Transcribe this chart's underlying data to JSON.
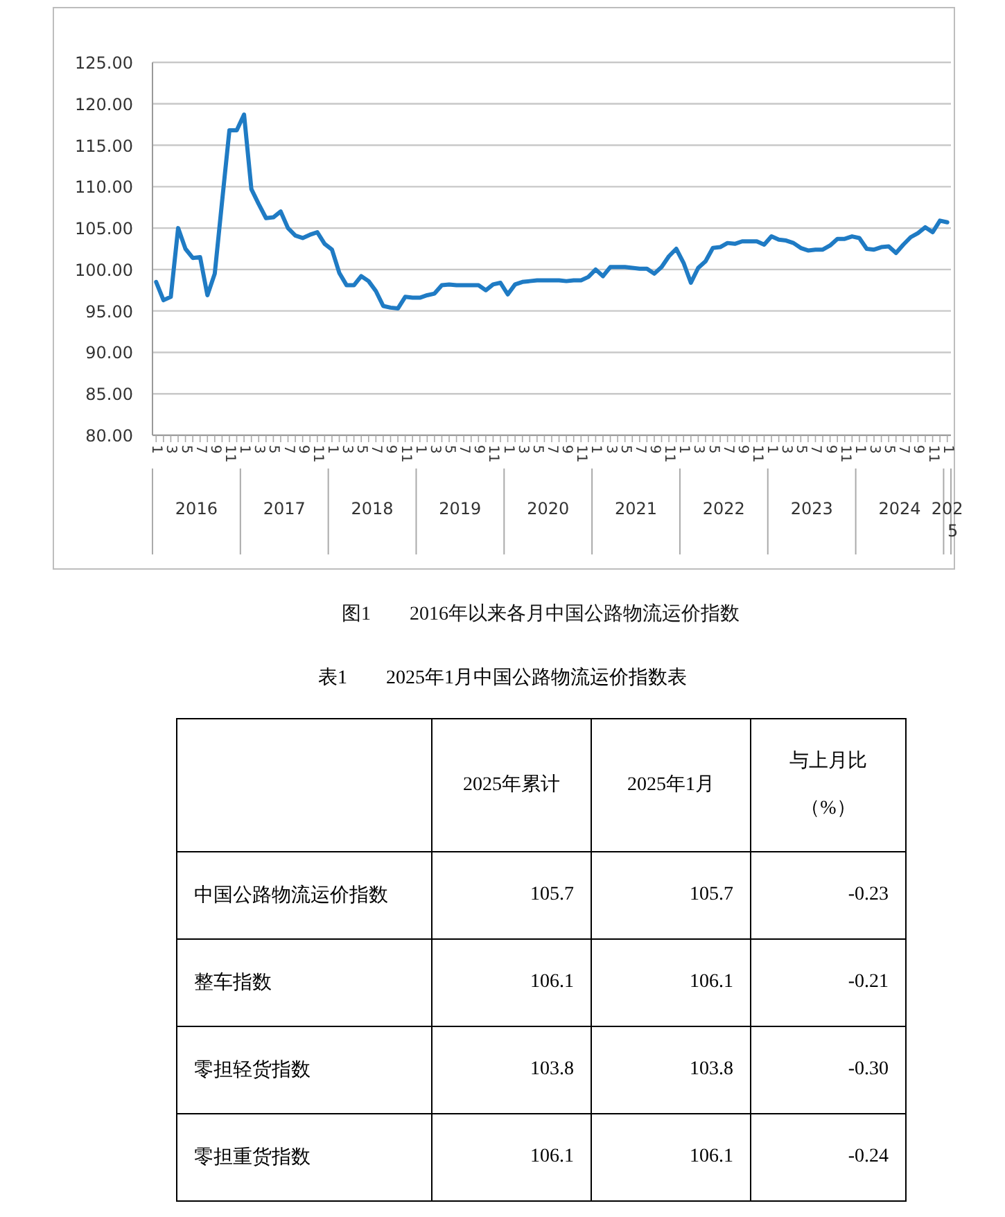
{
  "chart_data": [
    {
      "type": "line",
      "title": "图1　　2016年以来各月中国公路物流运价指数",
      "categories": [
        "1",
        null,
        "3",
        null,
        "5",
        null,
        "7",
        null,
        "9",
        null,
        "11",
        null,
        "1",
        null,
        "3",
        null,
        "5",
        null,
        "7",
        null,
        "9",
        null,
        "11",
        null,
        "1",
        null,
        "3",
        null,
        "5",
        null,
        "7",
        null,
        "9",
        null,
        "11",
        null,
        "1",
        null,
        "3",
        null,
        "5",
        null,
        "7",
        null,
        "9",
        null,
        "11",
        null,
        "1",
        null,
        "3",
        null,
        "5",
        null,
        "7",
        null,
        "9",
        null,
        "11",
        null,
        "1",
        null,
        "3",
        null,
        "5",
        null,
        "7",
        null,
        "9",
        null,
        "11",
        null,
        "1",
        null,
        "3",
        null,
        "5",
        null,
        "7",
        null,
        "9",
        null,
        "11",
        null,
        "1",
        null,
        "3",
        null,
        "5",
        null,
        "7",
        null,
        "9",
        null,
        "11",
        null,
        "1",
        null,
        "3",
        null,
        "5",
        null,
        "7",
        null,
        "9",
        null,
        "11",
        null,
        "1"
      ],
      "series": [
        {
          "color": "#1f7bc4",
          "values": [
            98.5,
            96.3,
            96.7,
            105.0,
            102.5,
            101.4,
            101.5,
            96.9,
            99.5,
            108.2,
            116.8,
            116.8,
            118.7,
            109.7,
            107.9,
            106.2,
            106.3,
            107.0,
            105.0,
            104.1,
            103.8,
            104.2,
            104.5,
            103.1,
            102.4,
            99.6,
            98.1,
            98.1,
            99.2,
            98.6,
            97.4,
            95.6,
            95.4,
            95.3,
            96.7,
            96.6,
            96.6,
            96.9,
            97.1,
            98.1,
            98.2,
            98.1,
            98.1,
            98.1,
            98.1,
            97.5,
            98.2,
            98.4,
            97.0,
            98.2,
            98.5,
            98.6,
            98.7,
            98.7,
            98.7,
            98.7,
            98.6,
            98.7,
            98.7,
            99.1,
            100.0,
            99.2,
            100.3,
            100.3,
            100.3,
            100.2,
            100.1,
            100.1,
            99.5,
            100.3,
            101.6,
            102.5,
            100.8,
            98.4,
            100.2,
            101.0,
            102.6,
            102.7,
            103.2,
            103.1,
            103.4,
            103.4,
            103.4,
            103.0,
            104.0,
            103.6,
            103.5,
            103.2,
            102.6,
            102.3,
            102.4,
            102.4,
            102.9,
            103.7,
            103.7,
            104.0,
            103.8,
            102.5,
            102.4,
            102.7,
            102.8,
            102.0,
            103.0,
            103.9,
            104.4,
            105.1,
            104.5,
            105.9,
            105.7
          ]
        }
      ],
      "ylim": [
        80,
        125
      ],
      "yticks": [
        {
          "value": 80,
          "label": "80.00"
        },
        {
          "value": 85,
          "label": "85.00"
        },
        {
          "value": 90,
          "label": "90.00"
        },
        {
          "value": 95,
          "label": "95.00"
        },
        {
          "value": 100,
          "label": "100.00"
        },
        {
          "value": 105,
          "label": "105.00"
        },
        {
          "value": 110,
          "label": "110.00"
        },
        {
          "value": 115,
          "label": "115.00"
        },
        {
          "value": 120,
          "label": "120.00"
        },
        {
          "value": 125,
          "label": "125.00"
        }
      ],
      "grid": "y",
      "marker": "none",
      "line_style": "solid",
      "annotations": [
        "2016",
        "2017",
        "2018",
        "2019",
        "2020",
        "2021",
        "2022",
        "2023",
        "2024",
        "2025"
      ]
    },
    {
      "type": "other",
      "title": "表1　　2025年1月中国公路物流运价指数表",
      "categories": [
        "中国公路物流运价指数",
        "整车指数",
        "零担轻货指数",
        "零担重货指数"
      ],
      "series": [
        {
          "name": "2025年累计",
          "values": [
            105.7,
            106.1,
            103.8,
            106.1
          ]
        },
        {
          "name": "2025年1月",
          "values": [
            105.7,
            106.1,
            103.8,
            106.1
          ]
        },
        {
          "name": "与上月比（%）",
          "values": [
            -0.23,
            -0.21,
            -0.3,
            -0.24
          ],
          "value_labels": [
            "-0.23",
            "-0.21",
            "-0.30",
            "-0.24"
          ]
        }
      ],
      "data_labels": true
    }
  ]
}
